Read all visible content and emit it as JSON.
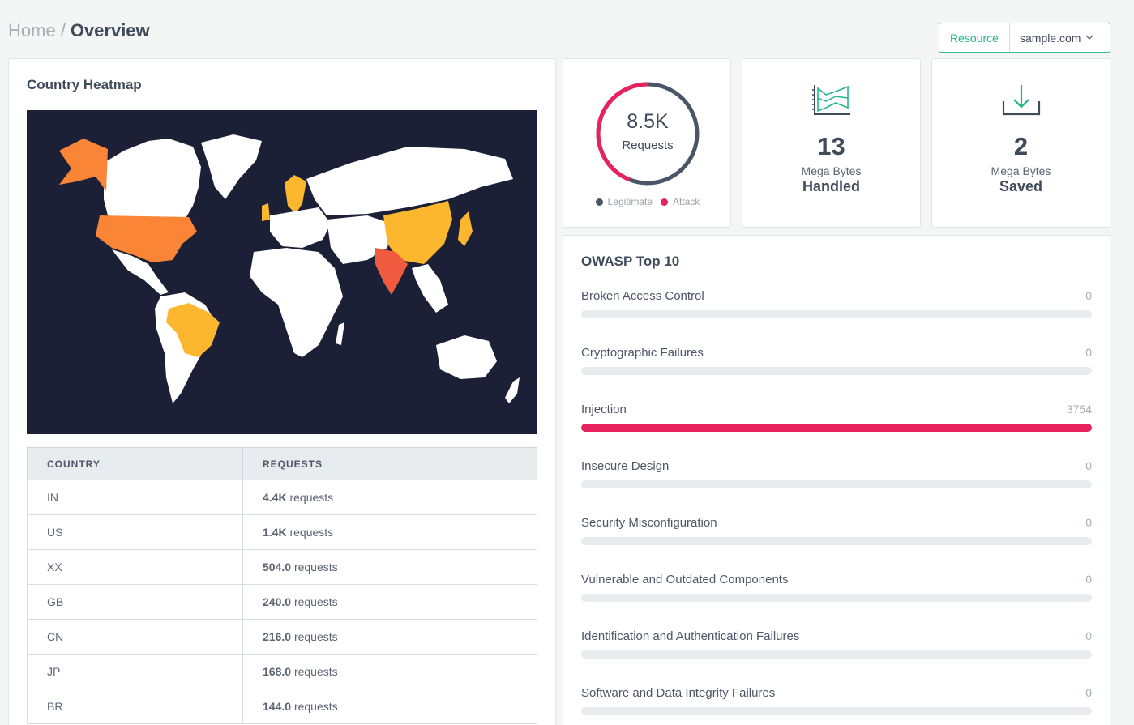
{
  "breadcrumb": {
    "home": "Home",
    "separator": "/",
    "current": "Overview"
  },
  "resource": {
    "label": "Resource",
    "value": "sample.com"
  },
  "heatmap": {
    "title": "Country Heatmap",
    "table": {
      "headers": [
        "COUNTRY",
        "REQUESTS"
      ],
      "rows": [
        {
          "country": "IN",
          "value": "4.4K",
          "suffix": "requests"
        },
        {
          "country": "US",
          "value": "1.4K",
          "suffix": "requests"
        },
        {
          "country": "XX",
          "value": "504.0",
          "suffix": "requests"
        },
        {
          "country": "GB",
          "value": "240.0",
          "suffix": "requests"
        },
        {
          "country": "CN",
          "value": "216.0",
          "suffix": "requests"
        },
        {
          "country": "JP",
          "value": "168.0",
          "suffix": "requests"
        },
        {
          "country": "BR",
          "value": "144.0",
          "suffix": "requests"
        }
      ]
    },
    "colors": {
      "ocean": "#1b2036",
      "land": "#ffffff",
      "high": "#f05a3f",
      "mid": "#fb8536",
      "low": "#fcb72f"
    }
  },
  "requests": {
    "value": "8.5K",
    "label": "Requests",
    "attack_fraction": 0.44,
    "legend": [
      {
        "name": "Legitimate",
        "color": "#4a5568"
      },
      {
        "name": "Attack",
        "color": "#e8215f"
      }
    ]
  },
  "handled": {
    "icon": "chart-area-icon",
    "value": "13",
    "unit": "Mega Bytes",
    "label": "Handled"
  },
  "saved": {
    "icon": "download-icon",
    "value": "2",
    "unit": "Mega Bytes",
    "label": "Saved"
  },
  "owasp": {
    "title": "OWASP Top 10",
    "items": [
      {
        "name": "Broken Access Control",
        "count": "0",
        "fraction": 0
      },
      {
        "name": "Cryptographic Failures",
        "count": "0",
        "fraction": 0
      },
      {
        "name": "Injection",
        "count": "3754",
        "fraction": 1
      },
      {
        "name": "Insecure Design",
        "count": "0",
        "fraction": 0
      },
      {
        "name": "Security Misconfiguration",
        "count": "0",
        "fraction": 0
      },
      {
        "name": "Vulnerable and Outdated Components",
        "count": "0",
        "fraction": 0
      },
      {
        "name": "Identification and Authentication Failures",
        "count": "0",
        "fraction": 0
      },
      {
        "name": "Software and Data Integrity Failures",
        "count": "0",
        "fraction": 0
      }
    ]
  }
}
